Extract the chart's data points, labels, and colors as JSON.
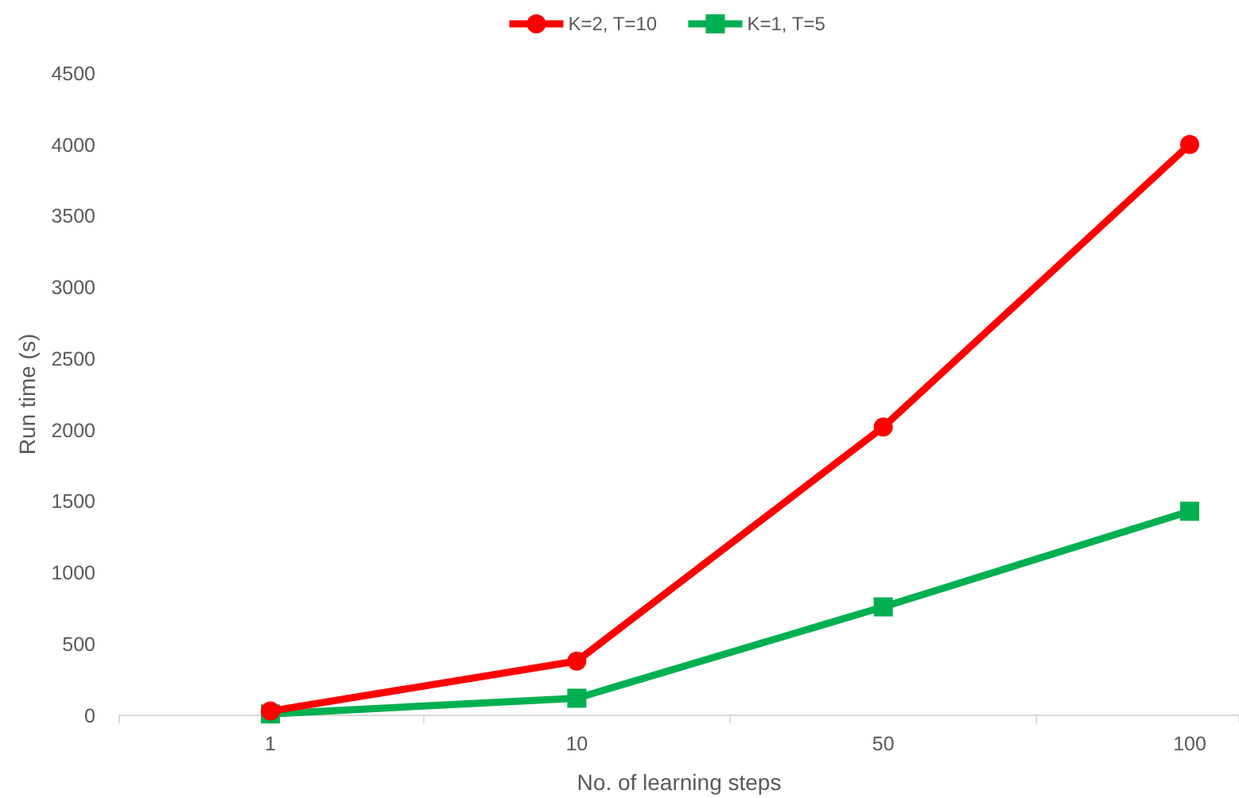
{
  "chart_data": {
    "type": "line",
    "xlabel": "No. of learning steps",
    "ylabel": "Run time (s)",
    "categories": [
      "1",
      "10",
      "50",
      "100"
    ],
    "series": [
      {
        "name": "K=2, T=10",
        "color": "#ff0000",
        "marker": "circle",
        "values": [
          30,
          380,
          2020,
          4000
        ]
      },
      {
        "name": "K=1, T=5",
        "color": "#00b050",
        "marker": "square",
        "values": [
          10,
          120,
          760,
          1430
        ]
      }
    ],
    "ylim": [
      0,
      4500
    ],
    "yticks": [
      0,
      500,
      1000,
      1500,
      2000,
      2500,
      3000,
      3500,
      4000,
      4500
    ],
    "grid": false,
    "legend": "top",
    "line_style": "solid"
  }
}
